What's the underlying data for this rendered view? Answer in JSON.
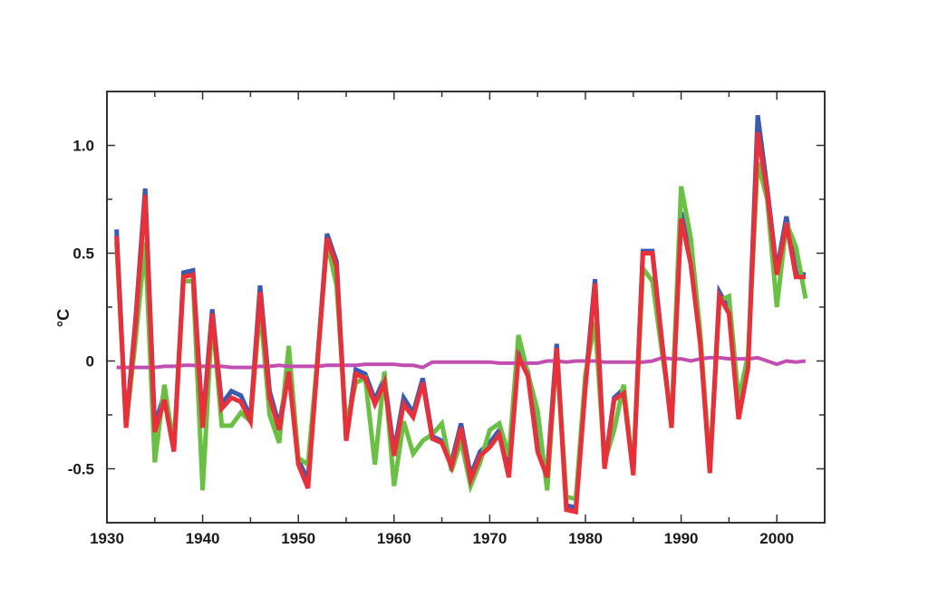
{
  "chart_data": {
    "type": "line",
    "title": "",
    "xlabel": "",
    "ylabel": "°C",
    "xlim": [
      1930,
      2005
    ],
    "ylim": [
      -0.75,
      1.25
    ],
    "x_ticks": [
      1930,
      1940,
      1950,
      1960,
      1970,
      1980,
      1990,
      2000
    ],
    "y_ticks": [
      -0.5,
      0,
      0.5,
      1.0
    ],
    "y_tick_labels": [
      "-0.5",
      "0",
      "0.5",
      "1.0"
    ],
    "grid": false,
    "legend": "none",
    "x": [
      1931,
      1932,
      1933,
      1934,
      1935,
      1936,
      1937,
      1938,
      1939,
      1940,
      1941,
      1942,
      1943,
      1944,
      1945,
      1946,
      1947,
      1948,
      1949,
      1950,
      1951,
      1952,
      1953,
      1954,
      1955,
      1956,
      1957,
      1958,
      1959,
      1960,
      1961,
      1962,
      1963,
      1964,
      1965,
      1966,
      1967,
      1968,
      1969,
      1970,
      1971,
      1972,
      1973,
      1974,
      1975,
      1976,
      1977,
      1978,
      1979,
      1980,
      1981,
      1982,
      1983,
      1984,
      1985,
      1986,
      1987,
      1988,
      1989,
      1990,
      1991,
      1992,
      1993,
      1994,
      1995,
      1996,
      1997,
      1998,
      1999,
      2000,
      2001,
      2002,
      2003
    ],
    "series": [
      {
        "color": "#3a5bb0",
        "values": [
          0.61,
          -0.3,
          0.2,
          0.8,
          -0.3,
          -0.15,
          -0.4,
          0.41,
          0.42,
          -0.29,
          0.24,
          -0.2,
          -0.14,
          -0.16,
          -0.26,
          0.35,
          -0.14,
          -0.3,
          -0.03,
          -0.46,
          -0.55,
          0.01,
          0.59,
          0.46,
          -0.35,
          -0.04,
          -0.06,
          -0.18,
          -0.08,
          -0.42,
          -0.17,
          -0.24,
          -0.08,
          -0.35,
          -0.37,
          -0.47,
          -0.29,
          -0.53,
          -0.42,
          -0.38,
          -0.32,
          -0.52,
          0.04,
          -0.05,
          -0.4,
          -0.52,
          0.08,
          -0.67,
          -0.68,
          -0.1,
          0.38,
          -0.49,
          -0.17,
          -0.13,
          -0.52,
          0.51,
          0.51,
          0.09,
          -0.3,
          0.69,
          0.47,
          0.1,
          -0.51,
          0.32,
          0.24,
          -0.25,
          -0.01,
          1.14,
          0.8,
          0.42,
          0.67,
          0.41,
          0.4
        ]
      },
      {
        "color": "#6abf45",
        "values": [
          0.55,
          -0.3,
          0.1,
          0.55,
          -0.47,
          -0.11,
          -0.4,
          0.37,
          0.37,
          -0.6,
          0.21,
          -0.3,
          -0.3,
          -0.24,
          -0.28,
          0.25,
          -0.25,
          -0.38,
          0.07,
          -0.45,
          -0.48,
          0.01,
          0.55,
          0.35,
          -0.3,
          -0.1,
          -0.08,
          -0.48,
          -0.05,
          -0.58,
          -0.28,
          -0.43,
          -0.37,
          -0.34,
          -0.29,
          -0.51,
          -0.37,
          -0.58,
          -0.47,
          -0.32,
          -0.29,
          -0.44,
          0.12,
          -0.06,
          -0.23,
          -0.6,
          0.05,
          -0.63,
          -0.64,
          -0.06,
          0.18,
          -0.47,
          -0.32,
          -0.11,
          -0.52,
          0.43,
          0.37,
          0.04,
          -0.27,
          0.81,
          0.57,
          0.13,
          -0.49,
          0.28,
          0.3,
          -0.18,
          0.03,
          0.92,
          0.75,
          0.25,
          0.64,
          0.53,
          0.29
        ]
      },
      {
        "color": "#c14fb0",
        "values": [
          -0.03,
          -0.03,
          -0.03,
          -0.03,
          -0.03,
          -0.025,
          -0.025,
          -0.02,
          -0.02,
          -0.025,
          -0.025,
          -0.025,
          -0.03,
          -0.03,
          -0.03,
          -0.025,
          -0.025,
          -0.02,
          -0.025,
          -0.025,
          -0.025,
          -0.025,
          -0.02,
          -0.02,
          -0.02,
          -0.02,
          -0.015,
          -0.015,
          -0.015,
          -0.015,
          -0.02,
          -0.02,
          -0.03,
          -0.005,
          -0.005,
          -0.005,
          -0.005,
          -0.005,
          -0.005,
          -0.005,
          -0.01,
          -0.01,
          -0.01,
          -0.01,
          -0.01,
          0.0,
          0.0,
          -0.005,
          0.0,
          0.0,
          0.0,
          -0.005,
          -0.005,
          -0.005,
          -0.005,
          -0.005,
          0.0,
          0.015,
          0.01,
          0.01,
          0.0,
          0.01,
          0.015,
          0.015,
          0.01,
          0.01,
          0.01,
          0.015,
          0.0,
          -0.015,
          0.0,
          -0.005,
          0.0
        ]
      },
      {
        "color": "#e8303a",
        "values": [
          0.58,
          -0.31,
          0.18,
          0.77,
          -0.33,
          -0.18,
          -0.42,
          0.39,
          0.4,
          -0.31,
          0.22,
          -0.22,
          -0.17,
          -0.19,
          -0.28,
          0.32,
          -0.17,
          -0.32,
          -0.05,
          -0.48,
          -0.59,
          -0.01,
          0.57,
          0.44,
          -0.37,
          -0.06,
          -0.08,
          -0.2,
          -0.1,
          -0.44,
          -0.2,
          -0.26,
          -0.1,
          -0.36,
          -0.38,
          -0.49,
          -0.31,
          -0.55,
          -0.44,
          -0.4,
          -0.34,
          -0.54,
          0.02,
          -0.07,
          -0.42,
          -0.54,
          0.06,
          -0.69,
          -0.7,
          -0.12,
          0.36,
          -0.5,
          -0.18,
          -0.15,
          -0.53,
          0.5,
          0.5,
          0.08,
          -0.31,
          0.66,
          0.45,
          0.08,
          -0.52,
          0.3,
          0.22,
          -0.27,
          -0.03,
          1.06,
          0.78,
          0.4,
          0.64,
          0.39,
          0.39
        ]
      }
    ]
  }
}
